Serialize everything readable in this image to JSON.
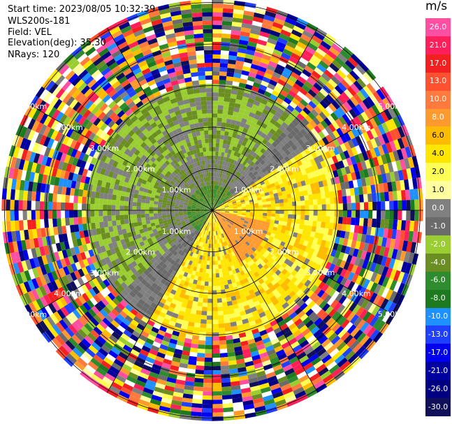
{
  "header": {
    "start_time": "Start time: 2023/08/05 10:32:39",
    "instrument": "WLS200s-181",
    "field": "Field: VEL",
    "elevation": "Elevation(deg): 35.30",
    "nrays": "NRays: 120"
  },
  "colorbar": {
    "unit": "m/s",
    "ticks": [
      "26.0",
      "21.0",
      "17.0",
      "13.0",
      "10.0",
      "8.0",
      "6.0",
      "4.0",
      "2.0",
      "1.0",
      "0.0",
      "-1.0",
      "-2.0",
      "-4.0",
      "-6.0",
      "-8.0",
      "-10.0",
      "-13.0",
      "-17.0",
      "-21.0",
      "-26.0",
      "-30.0"
    ],
    "colors": [
      "#ff4fa3",
      "#ff1f5a",
      "#f22020",
      "#ff5030",
      "#ff7a3c",
      "#ff9a2e",
      "#ffbb00",
      "#ffe600",
      "#ffff55",
      "#ffffa0",
      "#808080",
      "#6b6b6b",
      "#9acd32",
      "#6b8e23",
      "#2e8b2e",
      "#1e7a1e",
      "#1e90ff",
      "#2040ff",
      "#0000ee",
      "#0000a0",
      "#000080",
      "#10105a"
    ]
  },
  "chart_data": {
    "type": "ppi-velocity",
    "field": "VEL",
    "unit": "m/s",
    "nrays": 120,
    "elevation_deg": 35.3,
    "range_rings_km": [
      1.0,
      2.0,
      3.0,
      4.0,
      5.0
    ],
    "range_ring_labels": [
      "1.00km",
      "2.00km",
      "3.00km",
      "4.00km",
      "5.00km"
    ],
    "color_scale_min": -30.0,
    "color_scale_max": 26.0,
    "pattern": "Approaching flow (negative, green) from the north-west quadrant, receding flow (positive, yellow) toward the south-east; noisy multi-coloured returns beyond ~3 km."
  }
}
